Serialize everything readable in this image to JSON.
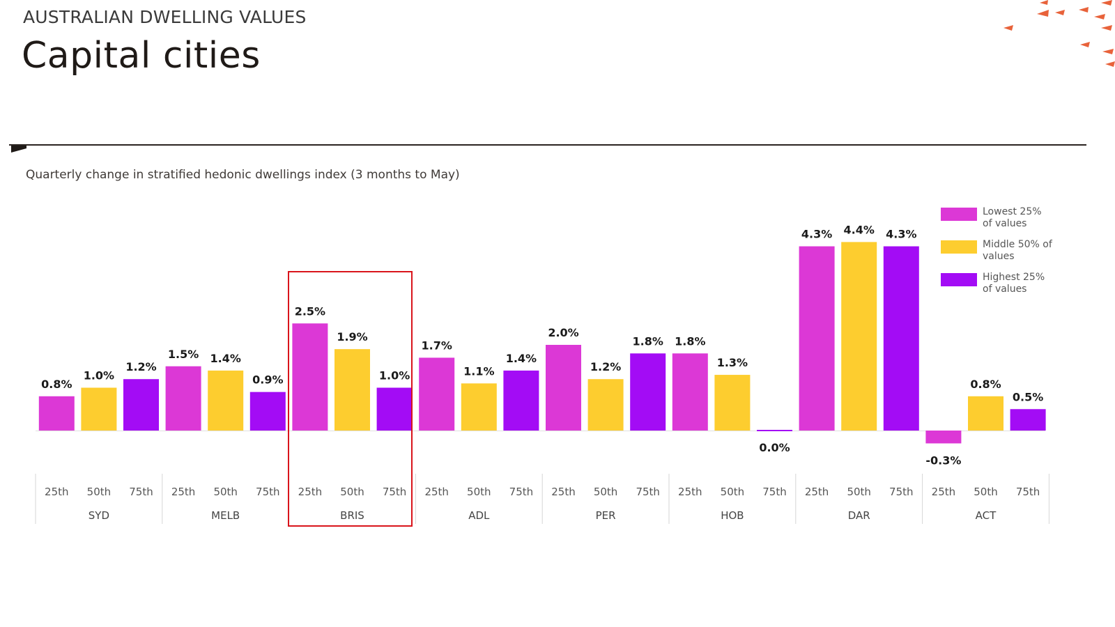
{
  "header": {
    "kicker": "AUSTRALIAN DWELLING VALUES",
    "title": "Capital cities"
  },
  "colors": {
    "lowest": "#dc38d6",
    "middle": "#fdcd2f",
    "highest": "#a30cf5",
    "accent_deco": "#e8623a",
    "highlight_box": "#d9141b",
    "rule": "#2a2320"
  },
  "chart_data": {
    "type": "bar",
    "subtitle": "Quarterly change in stratified hedonic dwellings index (3 months to May)",
    "groups": [
      "SYD",
      "MELB",
      "BRIS",
      "ADL",
      "PER",
      "HOB",
      "DAR",
      "ACT"
    ],
    "strata": [
      "25th",
      "50th",
      "75th"
    ],
    "series": [
      {
        "name": "Lowest 25% of values",
        "stratum": "25th",
        "color_key": "lowest",
        "values": [
          0.8,
          1.5,
          2.5,
          1.7,
          2.0,
          1.8,
          4.3,
          -0.3
        ]
      },
      {
        "name": "Middle 50% of values",
        "stratum": "50th",
        "color_key": "middle",
        "values": [
          1.0,
          1.4,
          1.9,
          1.1,
          1.2,
          1.3,
          4.4,
          0.8
        ]
      },
      {
        "name": "Highest 25% of values",
        "stratum": "75th",
        "color_key": "highest",
        "values": [
          1.2,
          0.9,
          1.0,
          1.4,
          1.8,
          0.0,
          4.3,
          0.5
        ]
      }
    ],
    "value_suffix": "%",
    "highlighted_group": "BRIS",
    "legend_position": "top-right",
    "grid": false,
    "xlabel": "",
    "ylabel": ""
  }
}
